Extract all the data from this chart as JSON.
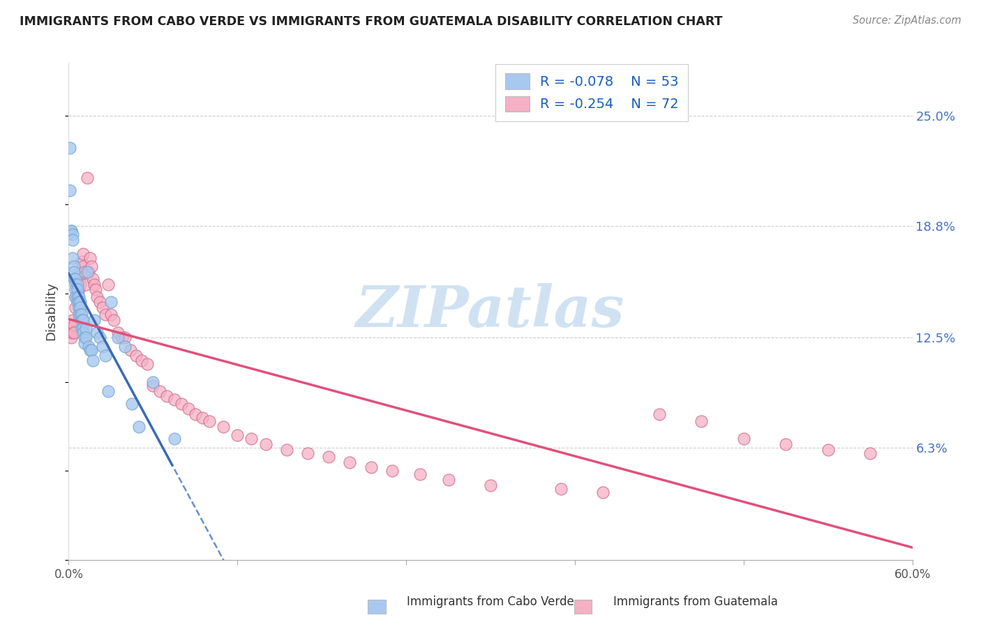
{
  "title": "IMMIGRANTS FROM CABO VERDE VS IMMIGRANTS FROM GUATEMALA DISABILITY CORRELATION CHART",
  "source": "Source: ZipAtlas.com",
  "ylabel": "Disability",
  "ytick_vals": [
    0.063,
    0.125,
    0.188,
    0.25
  ],
  "ytick_labels": [
    "6.3%",
    "12.5%",
    "18.8%",
    "25.0%"
  ],
  "xmin": 0.0,
  "xmax": 0.6,
  "ymin": 0.0,
  "ymax": 0.28,
  "cabo_verde_R": -0.078,
  "cabo_verde_N": 53,
  "guatemala_R": -0.254,
  "guatemala_N": 72,
  "cabo_verde_color": "#a8c8f0",
  "cabo_verde_edge_color": "#7aaad0",
  "cabo_verde_line_color": "#3a6ab4",
  "guatemala_color": "#f5b0c5",
  "guatemala_edge_color": "#d07090",
  "guatemala_line_color": "#e0507a",
  "watermark_text": "ZIPatlas",
  "cabo_verde_x": [
    0.001,
    0.001,
    0.002,
    0.002,
    0.003,
    0.003,
    0.003,
    0.004,
    0.004,
    0.004,
    0.005,
    0.005,
    0.005,
    0.005,
    0.006,
    0.006,
    0.006,
    0.006,
    0.007,
    0.007,
    0.007,
    0.007,
    0.008,
    0.008,
    0.008,
    0.009,
    0.009,
    0.009,
    0.01,
    0.01,
    0.01,
    0.011,
    0.011,
    0.012,
    0.012,
    0.013,
    0.014,
    0.015,
    0.016,
    0.017,
    0.018,
    0.02,
    0.022,
    0.024,
    0.026,
    0.028,
    0.03,
    0.035,
    0.04,
    0.045,
    0.05,
    0.06,
    0.075
  ],
  "cabo_verde_y": [
    0.232,
    0.208,
    0.185,
    0.185,
    0.183,
    0.18,
    0.17,
    0.165,
    0.162,
    0.158,
    0.158,
    0.155,
    0.152,
    0.148,
    0.155,
    0.152,
    0.148,
    0.145,
    0.148,
    0.145,
    0.142,
    0.138,
    0.145,
    0.142,
    0.138,
    0.138,
    0.135,
    0.13,
    0.135,
    0.13,
    0.128,
    0.125,
    0.122,
    0.13,
    0.125,
    0.162,
    0.12,
    0.118,
    0.118,
    0.112,
    0.135,
    0.128,
    0.125,
    0.12,
    0.115,
    0.095,
    0.145,
    0.125,
    0.12,
    0.088,
    0.075,
    0.1,
    0.068
  ],
  "guatemala_x": [
    0.001,
    0.001,
    0.002,
    0.002,
    0.003,
    0.003,
    0.004,
    0.004,
    0.005,
    0.005,
    0.006,
    0.006,
    0.007,
    0.007,
    0.008,
    0.008,
    0.009,
    0.01,
    0.01,
    0.011,
    0.012,
    0.013,
    0.014,
    0.015,
    0.016,
    0.017,
    0.018,
    0.019,
    0.02,
    0.022,
    0.024,
    0.026,
    0.028,
    0.03,
    0.032,
    0.035,
    0.038,
    0.04,
    0.044,
    0.048,
    0.052,
    0.056,
    0.06,
    0.065,
    0.07,
    0.075,
    0.08,
    0.085,
    0.09,
    0.095,
    0.1,
    0.11,
    0.12,
    0.13,
    0.14,
    0.155,
    0.17,
    0.185,
    0.2,
    0.215,
    0.23,
    0.25,
    0.27,
    0.3,
    0.35,
    0.38,
    0.42,
    0.45,
    0.48,
    0.51,
    0.54,
    0.57
  ],
  "guatemala_y": [
    0.132,
    0.128,
    0.13,
    0.125,
    0.135,
    0.128,
    0.132,
    0.128,
    0.148,
    0.142,
    0.152,
    0.148,
    0.158,
    0.152,
    0.162,
    0.155,
    0.168,
    0.172,
    0.165,
    0.162,
    0.155,
    0.215,
    0.162,
    0.17,
    0.165,
    0.158,
    0.155,
    0.152,
    0.148,
    0.145,
    0.142,
    0.138,
    0.155,
    0.138,
    0.135,
    0.128,
    0.125,
    0.125,
    0.118,
    0.115,
    0.112,
    0.11,
    0.098,
    0.095,
    0.092,
    0.09,
    0.088,
    0.085,
    0.082,
    0.08,
    0.078,
    0.075,
    0.07,
    0.068,
    0.065,
    0.062,
    0.06,
    0.058,
    0.055,
    0.052,
    0.05,
    0.048,
    0.045,
    0.042,
    0.04,
    0.038,
    0.082,
    0.078,
    0.068,
    0.065,
    0.062,
    0.06
  ]
}
